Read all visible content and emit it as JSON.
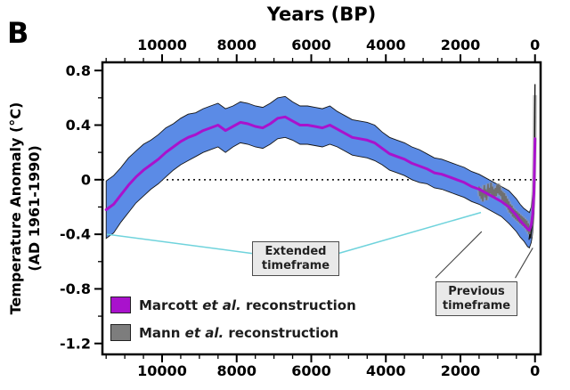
{
  "panel_label": "B",
  "title_top": "Years (BP)",
  "y_axis_label_line1": "Temperature Anomaly (°C)",
  "y_axis_label_line2": "(AD 1961-1990)",
  "legend": [
    {
      "prefix": "Marcott ",
      "italic": "et al.",
      "suffix": " reconstruction",
      "color": "#a912cc",
      "swatch_style": "background:#a912cc"
    },
    {
      "prefix": "Mann ",
      "italic": "et al.",
      "suffix": " reconstruction",
      "color": "#7d7d7d",
      "swatch_style": "background:#7d7d7d"
    }
  ],
  "annotations": {
    "extended": {
      "line1": "Extended",
      "line2": "timeframe"
    },
    "previous": {
      "line1": "Previous",
      "line2": "timeframe"
    }
  },
  "chart_data": {
    "type": "line",
    "title": "Years (BP)",
    "xlabel": "Years (BP)",
    "ylabel": "Temperature Anomaly (°C) (AD 1961-1990)",
    "x_axis": {
      "lim": [
        11600,
        -150
      ],
      "ticks": [
        10000,
        8000,
        6000,
        4000,
        2000,
        0
      ],
      "tick_labels": [
        "10000",
        "8000",
        "6000",
        "4000",
        "2000",
        "0"
      ],
      "minor_step": 500
    },
    "y_axis": {
      "lim": [
        -1.28,
        0.86
      ],
      "ticks": [
        0.8,
        0.4,
        0,
        -0.4,
        -0.8,
        -1.2
      ],
      "tick_labels": [
        "0.8",
        "0.4",
        "0",
        "-0.4",
        "-0.8",
        "-1.2"
      ],
      "minor_step": 0.2
    },
    "zero_line": 0,
    "colors": {
      "band": "#5b8be6",
      "band_edge": "#151515",
      "marcott": "#a912cc",
      "mann": "#6f6f6f",
      "mann_halo": "#a0a0a0",
      "instrumental": "#101010",
      "cyan": "#6fd3dc",
      "bracket": "#444444"
    },
    "series": {
      "marcott": {
        "name": "Marcott et al. reconstruction",
        "x": [
          11500,
          11300,
          11100,
          10900,
          10700,
          10500,
          10300,
          10100,
          9900,
          9700,
          9500,
          9300,
          9100,
          8900,
          8700,
          8500,
          8300,
          8100,
          7900,
          7700,
          7500,
          7300,
          7100,
          6900,
          6700,
          6500,
          6300,
          6100,
          5900,
          5700,
          5500,
          5300,
          5100,
          4900,
          4700,
          4500,
          4300,
          4100,
          3900,
          3700,
          3500,
          3300,
          3100,
          2900,
          2700,
          2500,
          2300,
          2100,
          1900,
          1700,
          1500,
          1300,
          1100,
          900,
          700,
          500,
          400,
          300,
          200,
          150,
          100,
          60,
          30,
          0
        ],
        "y": [
          -0.22,
          -0.18,
          -0.11,
          -0.04,
          0.02,
          0.07,
          0.11,
          0.15,
          0.2,
          0.24,
          0.28,
          0.31,
          0.33,
          0.36,
          0.38,
          0.4,
          0.36,
          0.39,
          0.42,
          0.41,
          0.39,
          0.38,
          0.41,
          0.45,
          0.46,
          0.43,
          0.4,
          0.4,
          0.39,
          0.38,
          0.4,
          0.37,
          0.34,
          0.31,
          0.3,
          0.29,
          0.27,
          0.23,
          0.19,
          0.17,
          0.15,
          0.12,
          0.1,
          0.08,
          0.05,
          0.04,
          0.02,
          0.0,
          -0.02,
          -0.05,
          -0.07,
          -0.1,
          -0.13,
          -0.16,
          -0.2,
          -0.26,
          -0.3,
          -0.33,
          -0.36,
          -0.37,
          -0.33,
          -0.25,
          -0.1,
          0.3
        ],
        "halfwidth": [
          0.21,
          0.21,
          0.2,
          0.2,
          0.19,
          0.19,
          0.18,
          0.18,
          0.18,
          0.17,
          0.17,
          0.17,
          0.16,
          0.16,
          0.16,
          0.16,
          0.16,
          0.15,
          0.15,
          0.15,
          0.15,
          0.15,
          0.15,
          0.15,
          0.15,
          0.14,
          0.14,
          0.14,
          0.14,
          0.14,
          0.14,
          0.13,
          0.13,
          0.13,
          0.13,
          0.13,
          0.13,
          0.12,
          0.12,
          0.12,
          0.12,
          0.12,
          0.12,
          0.11,
          0.11,
          0.11,
          0.11,
          0.11,
          0.11,
          0.11,
          0.11,
          0.11,
          0.11,
          0.11,
          0.12,
          0.12,
          0.12,
          0.12,
          0.13,
          0.13,
          0.13,
          0.14,
          0.15,
          0.17
        ]
      },
      "mann": {
        "name": "Mann et al. reconstruction",
        "x": [
          1500,
          1480,
          1460,
          1440,
          1420,
          1400,
          1380,
          1360,
          1340,
          1320,
          1300,
          1280,
          1260,
          1240,
          1220,
          1200,
          1180,
          1160,
          1140,
          1120,
          1100,
          1080,
          1060,
          1040,
          1020,
          1000,
          980,
          960,
          940,
          920,
          900,
          880,
          860,
          840,
          820,
          800,
          780,
          760,
          740,
          720,
          700,
          680,
          660,
          640,
          620,
          600,
          580,
          560,
          540,
          520,
          500,
          480,
          460,
          440,
          420,
          400,
          380,
          360,
          340,
          320,
          300,
          280,
          260,
          240,
          220,
          200,
          180,
          160,
          140,
          120,
          100,
          80,
          60,
          50,
          40,
          30,
          20,
          10,
          5,
          0
        ],
        "y": [
          -0.05,
          -0.12,
          -0.06,
          -0.14,
          -0.08,
          -0.16,
          -0.1,
          -0.04,
          -0.13,
          -0.07,
          -0.15,
          -0.09,
          -0.03,
          -0.12,
          -0.06,
          -0.1,
          -0.02,
          -0.11,
          -0.05,
          -0.13,
          -0.07,
          -0.14,
          -0.06,
          -0.12,
          -0.04,
          -0.1,
          -0.03,
          -0.11,
          -0.05,
          -0.12,
          -0.08,
          -0.15,
          -0.09,
          -0.16,
          -0.1,
          -0.18,
          -0.12,
          -0.2,
          -0.14,
          -0.22,
          -0.16,
          -0.24,
          -0.18,
          -0.25,
          -0.19,
          -0.27,
          -0.21,
          -0.28,
          -0.22,
          -0.29,
          -0.23,
          -0.3,
          -0.24,
          -0.31,
          -0.25,
          -0.32,
          -0.26,
          -0.33,
          -0.27,
          -0.34,
          -0.28,
          -0.35,
          -0.29,
          -0.36,
          -0.3,
          -0.38,
          -0.32,
          -0.4,
          -0.34,
          -0.42,
          -0.36,
          -0.3,
          -0.24,
          -0.18,
          -0.12,
          -0.02,
          0.12,
          0.3,
          0.45,
          0.62
        ]
      },
      "instrumental": {
        "name": "instrumental spike",
        "x": [
          160,
          140,
          120,
          100,
          80,
          60,
          40,
          30,
          20,
          10,
          5,
          0
        ],
        "y": [
          -0.44,
          -0.4,
          -0.43,
          -0.38,
          -0.33,
          -0.27,
          -0.17,
          -0.08,
          0.08,
          0.32,
          0.52,
          0.7
        ]
      }
    },
    "connectors": {
      "cyan": [
        [
          [
            11480,
            -0.4
          ],
          [
            7590,
            -0.54
          ]
        ],
        [
          [
            5270,
            -0.54
          ],
          [
            1450,
            -0.24
          ]
        ]
      ],
      "black": [
        [
          [
            2670,
            -0.72
          ],
          [
            1430,
            -0.38
          ]
        ],
        [
          [
            530,
            -0.72
          ],
          [
            60,
            -0.5
          ]
        ]
      ]
    }
  }
}
